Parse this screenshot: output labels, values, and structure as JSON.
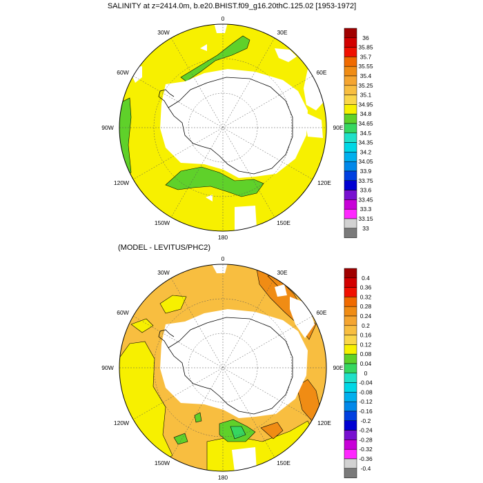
{
  "panels": [
    {
      "title": "SALINITY at z=2414.0m, b.e20.BHIST.f09_g16.20thC.125.02 [1953-1972]",
      "lon_labels": [
        "0",
        "30E",
        "60E",
        "90E",
        "120E",
        "150E",
        "180",
        "150W",
        "120W",
        "90W",
        "60W",
        "30W"
      ],
      "colorbar": {
        "labels": [
          "36",
          "35.85",
          "35.7",
          "35.55",
          "35.4",
          "35.25",
          "35.1",
          "34.95",
          "34.8",
          "34.65",
          "34.5",
          "34.35",
          "34.2",
          "34.05",
          "33.9",
          "33.75",
          "33.6",
          "33.45",
          "33.3",
          "33.15",
          "33"
        ],
        "colors": [
          "#a00000",
          "#d20000",
          "#f01000",
          "#f06a00",
          "#f08c14",
          "#f5a530",
          "#f8be40",
          "#fad64a",
          "#f7f000",
          "#5fd12a",
          "#36d760",
          "#20e0c8",
          "#00d7e6",
          "#00b0ee",
          "#0088ea",
          "#0040e0",
          "#0000d2",
          "#7810d0",
          "#c800d8",
          "#ff28ff",
          "#d2d2d2",
          "#7a7a7a"
        ]
      }
    },
    {
      "title": "(MODEL - LEVITUS/PHC2)",
      "lon_labels": [
        "0",
        "30E",
        "60E",
        "90E",
        "120E",
        "150E",
        "180",
        "150W",
        "120W",
        "90W",
        "60W",
        "30W"
      ],
      "colorbar": {
        "labels": [
          "0.4",
          "0.36",
          "0.32",
          "0.28",
          "0.24",
          "0.2",
          "0.16",
          "0.12",
          "0.08",
          "0.04",
          "0",
          "-0.04",
          "-0.08",
          "-0.12",
          "-0.16",
          "-0.2",
          "-0.24",
          "-0.28",
          "-0.32",
          "-0.36",
          "-0.4"
        ],
        "colors": [
          "#a00000",
          "#d20000",
          "#f01000",
          "#f06a00",
          "#f08c14",
          "#f5a530",
          "#f8be40",
          "#fad64a",
          "#f7f000",
          "#5fd12a",
          "#36d760",
          "#20e0c8",
          "#00d7e6",
          "#00b0ee",
          "#0088ea",
          "#0040e0",
          "#0000d2",
          "#7810d0",
          "#c800d8",
          "#ff28ff",
          "#d2d2d2",
          "#7a7a7a"
        ]
      }
    }
  ]
}
